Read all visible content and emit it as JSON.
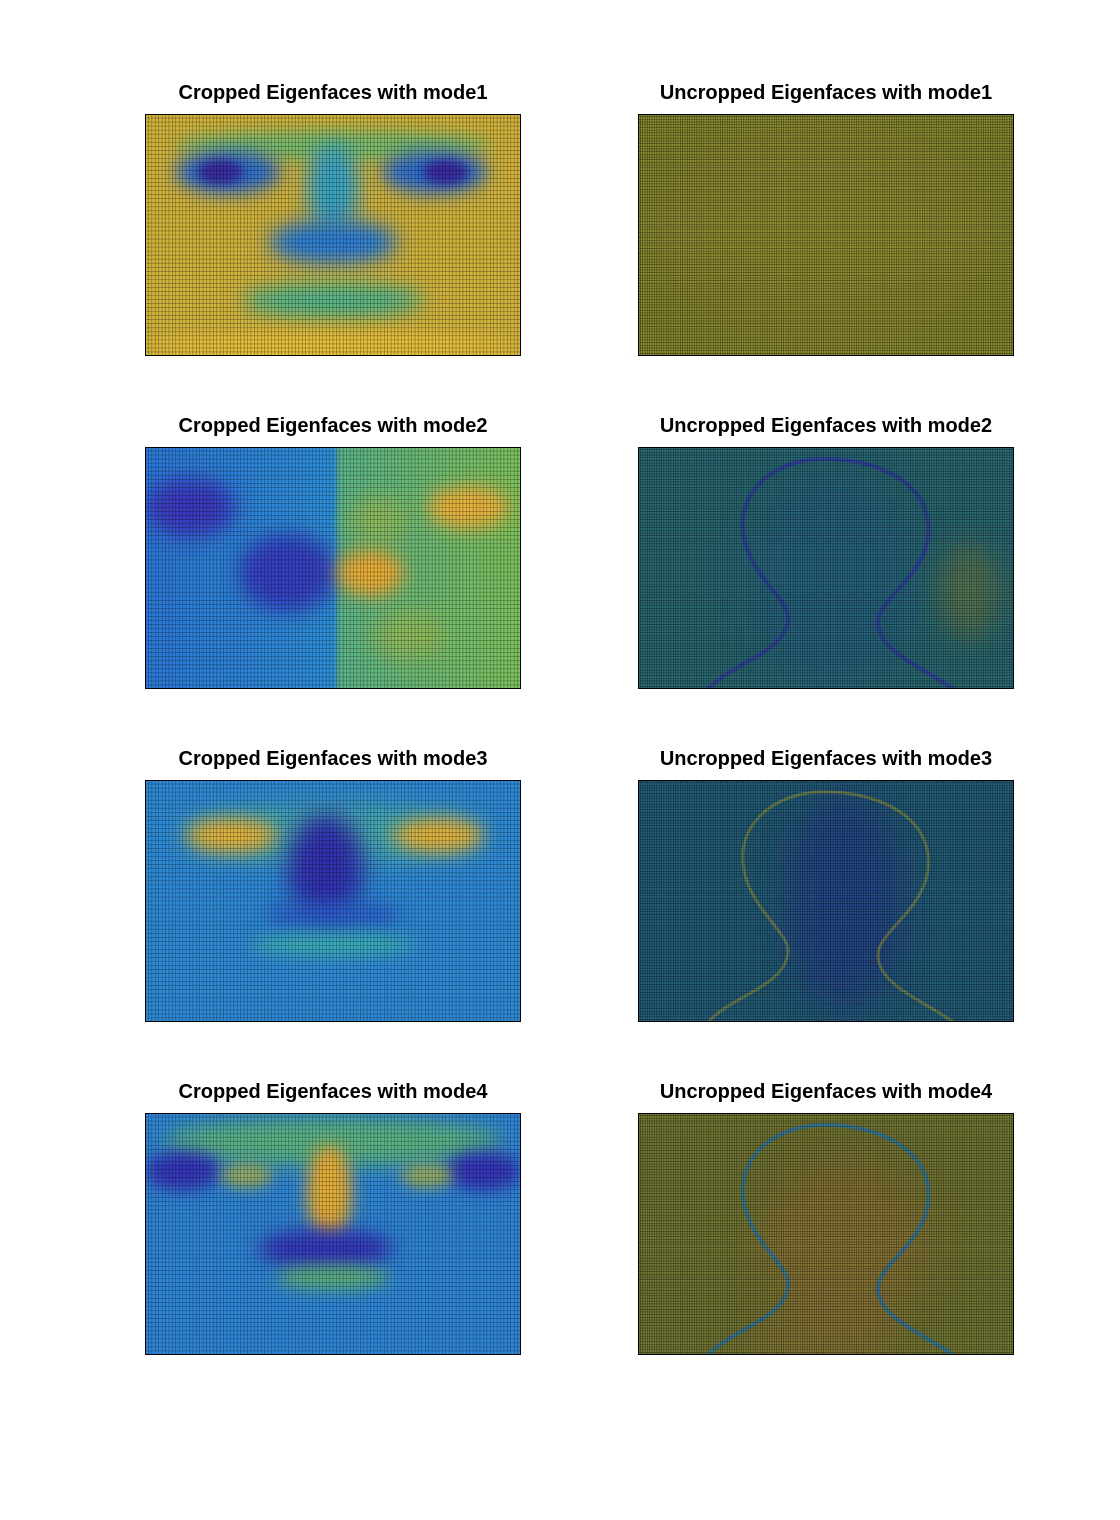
{
  "figure": {
    "layout": "4x2 grid of surface plots (view from above) with dense black mesh",
    "colormap": "parula",
    "colormap_stops": [
      "#3e26a8",
      "#4443ea",
      "#2e87f7",
      "#13b1e0",
      "#2bc8a6",
      "#85cb53",
      "#cdbd39",
      "#fbbb3a",
      "#f9da2f",
      "#f9fb15"
    ],
    "mesh_color": "#000000"
  },
  "chart_data": [
    {
      "type": "heatmap",
      "title": "Cropped Eigenfaces with mode1",
      "image": "cropped",
      "mode": 1,
      "axes_visible": false,
      "grid": true,
      "features": {
        "background": "yellow-orange",
        "eyes": "dark blue",
        "nose": "cyan-blue",
        "mouth": "green",
        "forehead_band": "green"
      }
    },
    {
      "type": "heatmap",
      "title": "Uncropped Eigenfaces with mode1",
      "image": "uncropped",
      "mode": 1,
      "axes_visible": false,
      "grid": true,
      "features": {
        "background": "olive-yellow, nearly uniform"
      }
    },
    {
      "type": "heatmap",
      "title": "Cropped Eigenfaces with mode2",
      "image": "cropped",
      "mode": 2,
      "axes_visible": false,
      "grid": true,
      "features": {
        "left_half": "blue",
        "right_half": "green",
        "left_eye": "dark blue",
        "right_eye": "orange",
        "nose_left": "dark blue",
        "nose_right": "orange"
      }
    },
    {
      "type": "heatmap",
      "title": "Uncropped Eigenfaces with mode2",
      "image": "uncropped",
      "mode": 2,
      "axes_visible": false,
      "grid": true,
      "features": {
        "background": "dark teal",
        "head_outline": "faint blue/orange silhouette"
      }
    },
    {
      "type": "heatmap",
      "title": "Cropped Eigenfaces with mode3",
      "image": "cropped",
      "mode": 3,
      "axes_visible": false,
      "grid": true,
      "features": {
        "background": "blue",
        "eyes": "orange",
        "nose": "dark blue",
        "mouth": "green"
      }
    },
    {
      "type": "heatmap",
      "title": "Uncropped Eigenfaces with mode3",
      "image": "uncropped",
      "mode": 3,
      "axes_visible": false,
      "grid": true,
      "features": {
        "background": "dark teal-blue",
        "head_outline": "faint yellow silhouette"
      }
    },
    {
      "type": "heatmap",
      "title": "Cropped Eigenfaces with mode4",
      "image": "cropped",
      "mode": 4,
      "axes_visible": false,
      "grid": true,
      "features": {
        "background": "blue",
        "eyes": "dark blue",
        "nose_bridge": "orange",
        "mouth": "dark blue",
        "forehead": "green"
      }
    },
    {
      "type": "heatmap",
      "title": "Uncropped Eigenfaces with mode4",
      "image": "uncropped",
      "mode": 4,
      "axes_visible": false,
      "grid": true,
      "features": {
        "background": "olive",
        "head_outline": "teal silhouette",
        "face": "orange tint"
      }
    }
  ]
}
